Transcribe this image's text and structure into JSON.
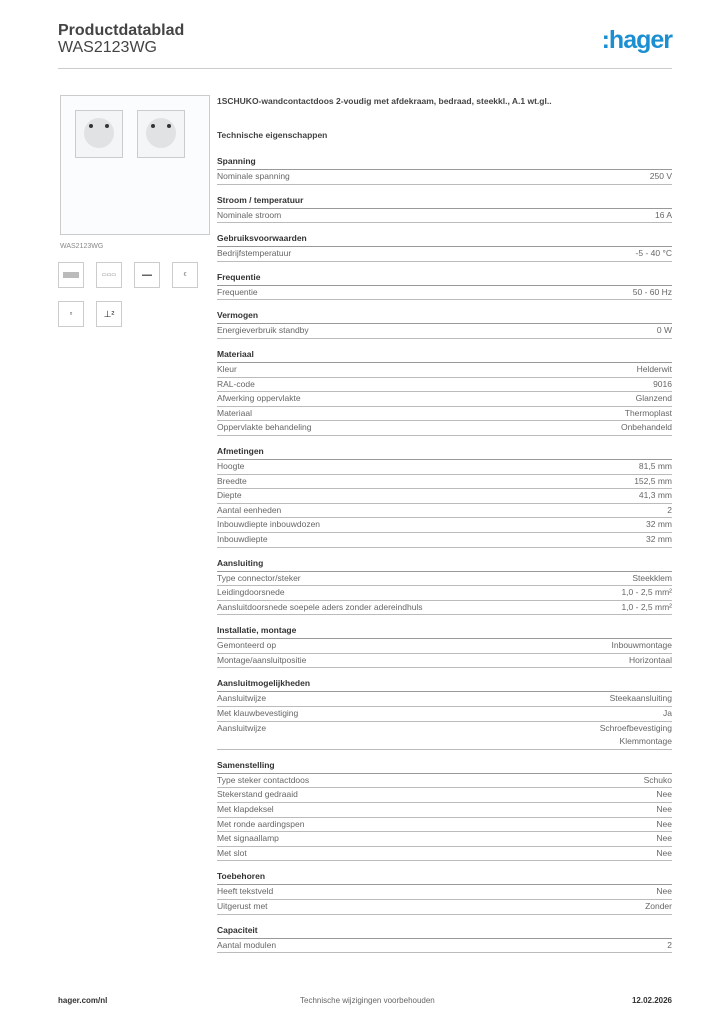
{
  "header": {
    "title": "Productdatablad",
    "model": "WAS2123WG",
    "logo": ":hager"
  },
  "product": {
    "image_caption": "WAS2123WG",
    "description": "1SCHUKO-wandcontactdoos 2-voudig met afdekraam, bedraad, steekkl., A.1 wt.gl..",
    "tech_heading": "Technische eigenschappen"
  },
  "sections": [
    {
      "title": "Spanning",
      "rows": [
        [
          "Nominale spanning",
          "250 V"
        ]
      ]
    },
    {
      "title": "Stroom / temperatuur",
      "rows": [
        [
          "Nominale stroom",
          "16 A"
        ]
      ]
    },
    {
      "title": "Gebruiksvoorwaarden",
      "rows": [
        [
          "Bedrijfstemperatuur",
          "-5 - 40 °C"
        ]
      ]
    },
    {
      "title": "Frequentie",
      "rows": [
        [
          "Frequentie",
          "50 - 60 Hz"
        ]
      ]
    },
    {
      "title": "Vermogen",
      "rows": [
        [
          "Energieverbruik standby",
          "0 W"
        ]
      ]
    },
    {
      "title": "Materiaal",
      "rows": [
        [
          "Kleur",
          "Helderwit"
        ],
        [
          "RAL-code",
          "9016"
        ],
        [
          "Afwerking oppervlakte",
          "Glanzend"
        ],
        [
          "Materiaal",
          "Thermoplast"
        ],
        [
          "Oppervlakte behandeling",
          "Onbehandeld"
        ]
      ]
    },
    {
      "title": "Afmetingen",
      "rows": [
        [
          "Hoogte",
          "81,5 mm"
        ],
        [
          "Breedte",
          "152,5 mm"
        ],
        [
          "Diepte",
          "41,3 mm"
        ],
        [
          "Aantal eenheden",
          "2"
        ],
        [
          "Inbouwdiepte inbouwdozen",
          "32 mm"
        ],
        [
          "Inbouwdiepte",
          "32 mm"
        ]
      ]
    },
    {
      "title": "Aansluiting",
      "rows": [
        [
          "Type connector/steker",
          "Steekklem"
        ],
        [
          "Leidingdoorsnede",
          "1,0 - 2,5 mm²"
        ],
        [
          "Aansluitdoorsnede soepele aders zonder adereindhuls",
          "1,0 - 2,5 mm²"
        ]
      ]
    },
    {
      "title": "Installatie, montage",
      "rows": [
        [
          "Gemonteerd op",
          "Inbouwmontage"
        ],
        [
          "Montage/aansluitpositie",
          "Horizontaal"
        ]
      ]
    },
    {
      "title": "Aansluitmogelijkheden",
      "rows": [
        [
          "Aansluitwijze",
          "Steekaansluiting"
        ],
        [
          "Met klauwbevestiging",
          "Ja"
        ],
        [
          "Aansluitwijze",
          "Schroefbevestiging\nKlemmontage"
        ]
      ]
    },
    {
      "title": "Samenstelling",
      "rows": [
        [
          "Type steker contactdoos",
          "Schuko"
        ],
        [
          "Stekerstand gedraaid",
          "Nee"
        ],
        [
          "Met klapdeksel",
          "Nee"
        ],
        [
          "Met ronde aardingspen",
          "Nee"
        ],
        [
          "Met signaallamp",
          "Nee"
        ],
        [
          "Met slot",
          "Nee"
        ]
      ]
    },
    {
      "title": "Toebehoren",
      "rows": [
        [
          "Heeft tekstveld",
          "Nee"
        ],
        [
          "Uitgerust met",
          "Zonder"
        ]
      ]
    },
    {
      "title": "Capaciteit",
      "rows": [
        [
          "Aantal modulen",
          "2"
        ]
      ]
    }
  ],
  "footer": {
    "left": "hager.com/nl",
    "center": "Technische wijzigingen voorbehouden",
    "right": "12.02.2026"
  },
  "colors": {
    "brand": "#1b8fd2"
  }
}
